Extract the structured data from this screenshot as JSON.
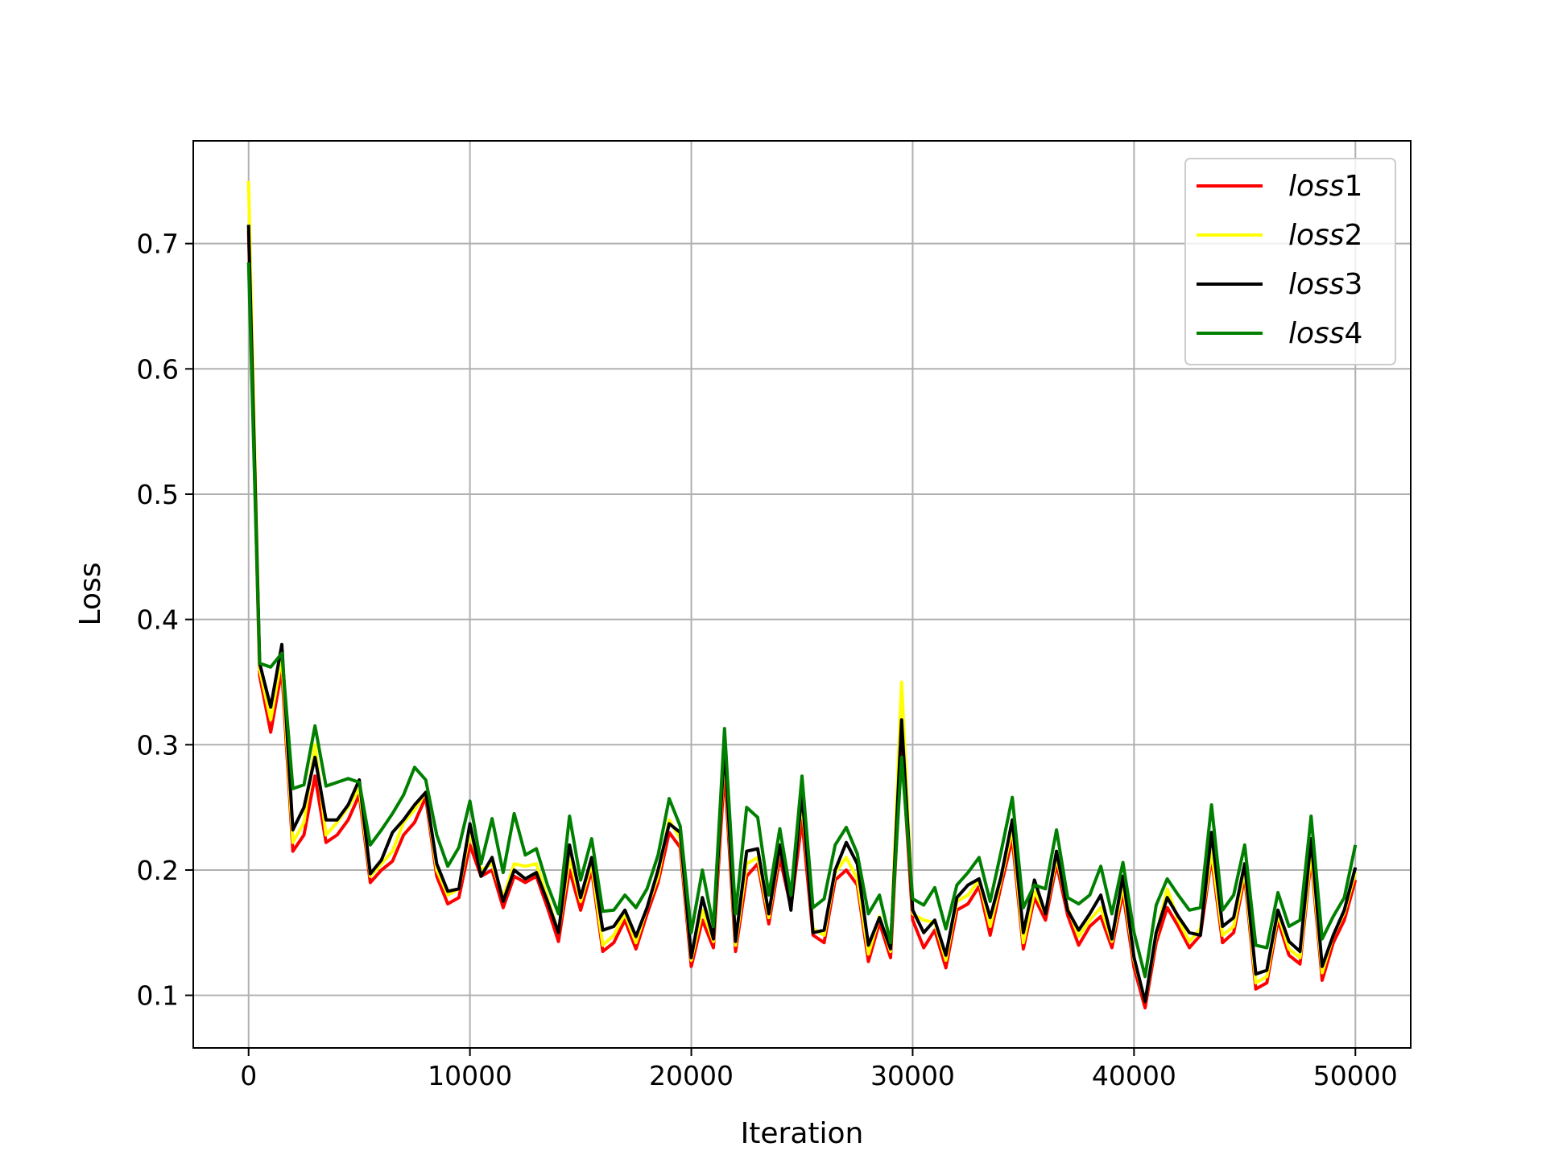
{
  "chart_data": {
    "type": "line",
    "title": "",
    "xlabel": "Iteration",
    "ylabel": "Loss",
    "xlim": [
      -2500,
      52500
    ],
    "ylim": [
      0.058,
      0.782
    ],
    "xticks": [
      0,
      10000,
      20000,
      30000,
      40000,
      50000
    ],
    "yticks": [
      0.1,
      0.2,
      0.3,
      0.4,
      0.5,
      0.6,
      0.7
    ],
    "xtick_labels": [
      "0",
      "10000",
      "20000",
      "30000",
      "40000",
      "50000"
    ],
    "ytick_labels": [
      "0.1",
      "0.2",
      "0.3",
      "0.4",
      "0.5",
      "0.6",
      "0.7"
    ],
    "grid": true,
    "legend_position": "top-right",
    "x": [
      0,
      500,
      1000,
      1500,
      2000,
      2500,
      3000,
      3500,
      4000,
      4500,
      5000,
      5500,
      6000,
      6500,
      7000,
      7500,
      8000,
      8500,
      9000,
      9500,
      10000,
      10500,
      11000,
      11500,
      12000,
      12500,
      13000,
      13500,
      14000,
      14500,
      15000,
      15500,
      16000,
      16500,
      17000,
      17500,
      18000,
      18500,
      19000,
      19500,
      20000,
      20500,
      21000,
      21500,
      22000,
      22500,
      23000,
      23500,
      24000,
      24500,
      25000,
      25500,
      26000,
      26500,
      27000,
      27500,
      28000,
      28500,
      29000,
      29500,
      30000,
      30500,
      31000,
      31500,
      32000,
      32500,
      33000,
      33500,
      34000,
      34500,
      35000,
      35500,
      36000,
      36500,
      37000,
      37500,
      38000,
      38500,
      39000,
      39500,
      40000,
      40500,
      41000,
      41500,
      42000,
      42500,
      43000,
      43500,
      44000,
      44500,
      45000,
      45500,
      46000,
      46500,
      47000,
      47500,
      48000,
      48500,
      49000,
      49500,
      50000
    ],
    "series": [
      {
        "name": "loss1",
        "name_base": "loss",
        "name_index": "1",
        "color": "#ff0000",
        "values": [
          0.71,
          0.355,
          0.31,
          0.36,
          0.215,
          0.228,
          0.275,
          0.222,
          0.228,
          0.24,
          0.26,
          0.19,
          0.2,
          0.207,
          0.228,
          0.238,
          0.258,
          0.195,
          0.173,
          0.178,
          0.22,
          0.195,
          0.2,
          0.17,
          0.195,
          0.19,
          0.195,
          0.17,
          0.143,
          0.2,
          0.168,
          0.2,
          0.135,
          0.142,
          0.16,
          0.137,
          0.165,
          0.19,
          0.23,
          0.218,
          0.123,
          0.16,
          0.138,
          0.28,
          0.135,
          0.195,
          0.205,
          0.157,
          0.21,
          0.17,
          0.24,
          0.148,
          0.142,
          0.192,
          0.2,
          0.188,
          0.127,
          0.158,
          0.13,
          0.3,
          0.16,
          0.138,
          0.152,
          0.122,
          0.168,
          0.173,
          0.187,
          0.148,
          0.188,
          0.225,
          0.137,
          0.178,
          0.16,
          0.205,
          0.164,
          0.14,
          0.155,
          0.163,
          0.138,
          0.182,
          0.122,
          0.09,
          0.142,
          0.17,
          0.155,
          0.138,
          0.148,
          0.21,
          0.142,
          0.15,
          0.195,
          0.105,
          0.11,
          0.16,
          0.132,
          0.125,
          0.21,
          0.112,
          0.142,
          0.16,
          0.192
        ]
      },
      {
        "name": "loss2",
        "name_base": "loss",
        "name_index": "2",
        "color": "#ffff00",
        "values": [
          0.75,
          0.36,
          0.32,
          0.37,
          0.222,
          0.238,
          0.3,
          0.228,
          0.238,
          0.25,
          0.265,
          0.195,
          0.205,
          0.215,
          0.238,
          0.248,
          0.262,
          0.2,
          0.18,
          0.185,
          0.23,
          0.2,
          0.205,
          0.178,
          0.205,
          0.203,
          0.205,
          0.178,
          0.15,
          0.21,
          0.175,
          0.205,
          0.14,
          0.148,
          0.165,
          0.142,
          0.17,
          0.195,
          0.24,
          0.225,
          0.128,
          0.168,
          0.143,
          0.295,
          0.14,
          0.205,
          0.21,
          0.162,
          0.218,
          0.175,
          0.255,
          0.153,
          0.148,
          0.198,
          0.21,
          0.193,
          0.133,
          0.163,
          0.135,
          0.35,
          0.165,
          0.16,
          0.158,
          0.128,
          0.175,
          0.18,
          0.192,
          0.155,
          0.193,
          0.233,
          0.142,
          0.183,
          0.165,
          0.21,
          0.17,
          0.147,
          0.16,
          0.17,
          0.143,
          0.188,
          0.128,
          0.095,
          0.148,
          0.185,
          0.16,
          0.143,
          0.153,
          0.215,
          0.148,
          0.155,
          0.2,
          0.11,
          0.115,
          0.165,
          0.137,
          0.13,
          0.215,
          0.118,
          0.148,
          0.166,
          0.198
        ]
      },
      {
        "name": "loss3",
        "name_base": "loss",
        "name_index": "3",
        "color": "#000000",
        "values": [
          0.715,
          0.365,
          0.33,
          0.38,
          0.232,
          0.25,
          0.29,
          0.24,
          0.24,
          0.252,
          0.272,
          0.197,
          0.208,
          0.23,
          0.24,
          0.252,
          0.262,
          0.205,
          0.183,
          0.185,
          0.237,
          0.195,
          0.21,
          0.175,
          0.2,
          0.193,
          0.198,
          0.175,
          0.15,
          0.22,
          0.178,
          0.21,
          0.152,
          0.155,
          0.168,
          0.147,
          0.17,
          0.2,
          0.237,
          0.23,
          0.13,
          0.178,
          0.145,
          0.3,
          0.143,
          0.215,
          0.217,
          0.165,
          0.22,
          0.168,
          0.262,
          0.15,
          0.152,
          0.2,
          0.222,
          0.205,
          0.14,
          0.162,
          0.137,
          0.32,
          0.168,
          0.15,
          0.16,
          0.132,
          0.178,
          0.188,
          0.193,
          0.162,
          0.195,
          0.24,
          0.15,
          0.192,
          0.165,
          0.215,
          0.168,
          0.152,
          0.165,
          0.18,
          0.145,
          0.195,
          0.13,
          0.095,
          0.15,
          0.178,
          0.163,
          0.15,
          0.148,
          0.23,
          0.155,
          0.162,
          0.205,
          0.117,
          0.12,
          0.168,
          0.143,
          0.135,
          0.225,
          0.123,
          0.148,
          0.168,
          0.202
        ]
      },
      {
        "name": "loss4",
        "name_base": "loss",
        "name_index": "4",
        "color": "#008000",
        "values": [
          0.685,
          0.365,
          0.362,
          0.373,
          0.265,
          0.268,
          0.315,
          0.267,
          0.27,
          0.273,
          0.27,
          0.22,
          0.232,
          0.245,
          0.26,
          0.282,
          0.272,
          0.228,
          0.203,
          0.218,
          0.255,
          0.205,
          0.241,
          0.198,
          0.245,
          0.212,
          0.217,
          0.188,
          0.165,
          0.243,
          0.192,
          0.225,
          0.167,
          0.168,
          0.18,
          0.17,
          0.185,
          0.212,
          0.257,
          0.235,
          0.15,
          0.2,
          0.155,
          0.313,
          0.165,
          0.25,
          0.242,
          0.18,
          0.233,
          0.18,
          0.275,
          0.17,
          0.177,
          0.22,
          0.234,
          0.213,
          0.165,
          0.18,
          0.142,
          0.29,
          0.177,
          0.172,
          0.186,
          0.153,
          0.188,
          0.198,
          0.21,
          0.175,
          0.215,
          0.258,
          0.17,
          0.188,
          0.185,
          0.232,
          0.178,
          0.173,
          0.18,
          0.203,
          0.165,
          0.206,
          0.15,
          0.115,
          0.172,
          0.193,
          0.18,
          0.168,
          0.17,
          0.252,
          0.168,
          0.18,
          0.22,
          0.14,
          0.138,
          0.182,
          0.155,
          0.16,
          0.243,
          0.145,
          0.163,
          0.178,
          0.22
        ]
      }
    ]
  }
}
